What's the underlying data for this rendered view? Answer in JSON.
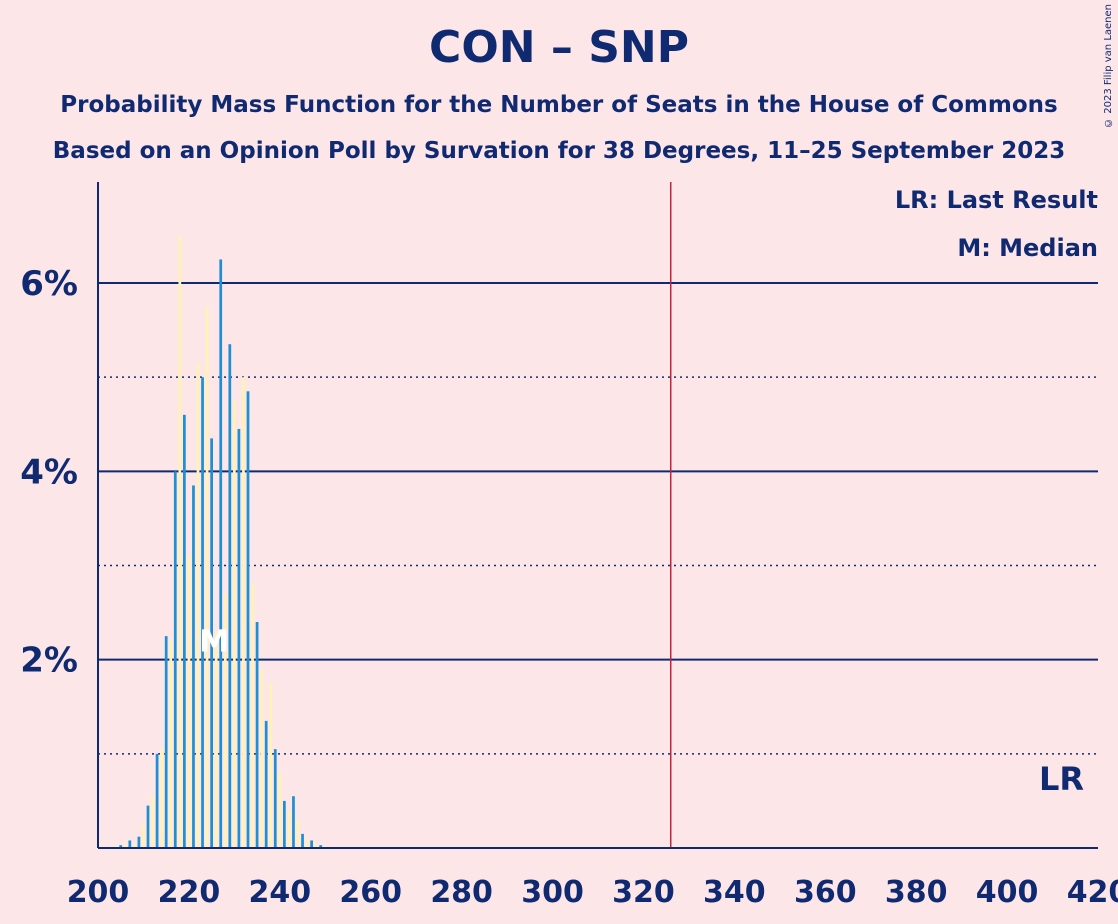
{
  "title": "CON – SNP",
  "subtitle1": "Probability Mass Function for the Number of Seats in the House of Commons",
  "subtitle2": "Based on an Opinion Poll by Survation for 38 Degrees, 11–25 September 2023",
  "copyright": "© 2023 Filip van Laenen",
  "legend": {
    "last_result": "LR: Last Result",
    "median": "M: Median",
    "lr_marker": "LR",
    "median_marker": "M"
  },
  "colors": {
    "background": "#fde6e8",
    "axis": "#102a72",
    "bar_blue": "#1e8fd2",
    "bar_yellow": "#fff2b4",
    "majority_line": "#c0233b"
  },
  "chart_data": {
    "type": "bar",
    "xlim": [
      200,
      420
    ],
    "ylim": [
      0,
      7
    ],
    "x_ticks": [
      200,
      220,
      240,
      260,
      280,
      300,
      320,
      340,
      360,
      380,
      400,
      420
    ],
    "y_ticks": [
      {
        "value": 2,
        "label": "2%"
      },
      {
        "value": 4,
        "label": "4%"
      },
      {
        "value": 6,
        "label": "6%"
      }
    ],
    "y_minor_gridlines": [
      1,
      3,
      5
    ],
    "majority_line_x": 326,
    "median_x": 226,
    "x": [
      203,
      204,
      205,
      206,
      207,
      208,
      209,
      210,
      211,
      212,
      213,
      214,
      215,
      216,
      217,
      218,
      219,
      220,
      221,
      222,
      223,
      224,
      225,
      226,
      227,
      228,
      229,
      230,
      231,
      232,
      233,
      234,
      235,
      236,
      237,
      238,
      239,
      240,
      241,
      242,
      243,
      244,
      245,
      246,
      247,
      248,
      249,
      250,
      251,
      252
    ],
    "values": [
      0.01,
      0.02,
      0.03,
      0.05,
      0.08,
      0.05,
      0.12,
      0.25,
      0.45,
      0.55,
      1.0,
      1.05,
      2.25,
      2.2,
      4.0,
      6.5,
      4.6,
      3.1,
      3.85,
      5.15,
      5.0,
      5.75,
      4.35,
      2.3,
      6.25,
      2.7,
      5.35,
      4.75,
      4.45,
      5.0,
      4.85,
      2.8,
      2.4,
      1.9,
      1.35,
      1.75,
      1.05,
      0.8,
      0.5,
      0.4,
      0.55,
      0.3,
      0.15,
      0.1,
      0.08,
      0.05,
      0.03,
      0.02,
      0.01,
      0.01
    ],
    "xlabel": "",
    "ylabel": ""
  }
}
